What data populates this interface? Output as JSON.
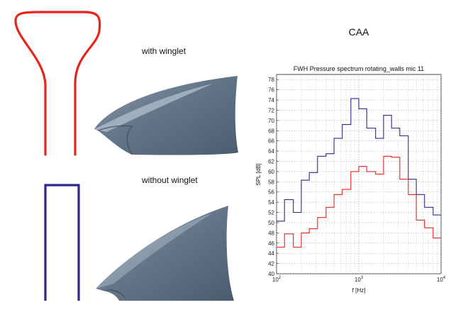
{
  "labels": {
    "with_winglet": "with winglet",
    "without_winglet": "without winglet",
    "section_title": "CAA"
  },
  "colors": {
    "winglet_profile": "#e8251b",
    "plain_profile": "#2b2a8c",
    "blade_surface": "#607488",
    "blade_highlight": "#a9b7c4",
    "blade_shadow": "#3f5062"
  },
  "chart_data": {
    "type": "line",
    "title": "FWH Pressure spectrum rotating_walls mic 11",
    "xlabel": "f [Hz]",
    "ylabel": "SPL [dB]",
    "xscale": "log",
    "xlim": [
      100,
      10000
    ],
    "ylim": [
      40,
      79
    ],
    "yticks": [
      40,
      42,
      44,
      46,
      48,
      50,
      52,
      54,
      56,
      58,
      60,
      62,
      64,
      66,
      68,
      70,
      72,
      74,
      76,
      78
    ],
    "xticks": [
      {
        "value": 100,
        "base": "10",
        "exp": "2"
      },
      {
        "value": 1000,
        "base": "10",
        "exp": "3"
      },
      {
        "value": 10000,
        "base": "10",
        "exp": "4"
      }
    ],
    "grid": true,
    "step": true,
    "bin_edges": [
      100,
      125,
      160,
      200,
      250,
      315,
      400,
      500,
      630,
      800,
      1000,
      1250,
      1600,
      2000,
      2500,
      3150,
      4000,
      5000,
      6300,
      8000,
      10000
    ],
    "series": [
      {
        "color": "#2b2a8c",
        "values": [
          50.3,
          54.5,
          52.0,
          58.3,
          59.8,
          63.0,
          63.5,
          66.5,
          69.2,
          74.3,
          72.3,
          68.5,
          66.5,
          71.0,
          68.5,
          67.0,
          58.5,
          55.5,
          53.0,
          51.5
        ]
      },
      {
        "color": "#e8251b",
        "values": [
          45.2,
          47.8,
          45.2,
          48.0,
          48.8,
          51.0,
          53.0,
          55.5,
          56.5,
          60.0,
          61.0,
          60.0,
          59.5,
          63.0,
          62.8,
          58.5,
          55.5,
          50.5,
          49.0,
          47.0
        ]
      }
    ]
  }
}
